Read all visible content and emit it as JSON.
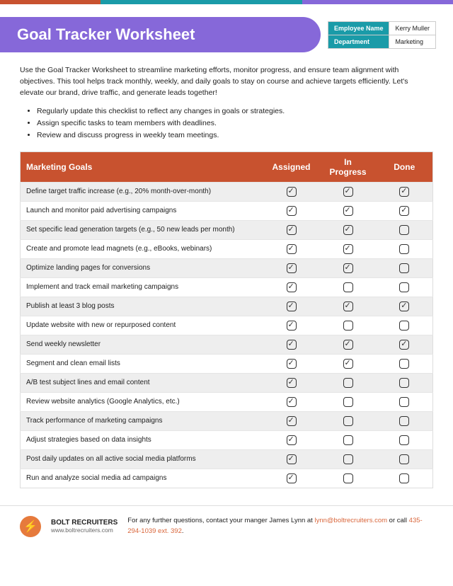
{
  "colors": {
    "purple": "#8668d9",
    "teal": "#1a9ba8",
    "rust": "#c8522f",
    "orange": "#e67a3c"
  },
  "title": "Goal Tracker Worksheet",
  "info": {
    "empLabel": "Employee Name",
    "empValue": "Kerry Muller",
    "deptLabel": "Department",
    "deptValue": "Marketing"
  },
  "intro": "Use the Goal Tracker Worksheet to streamline marketing efforts, monitor progress, and ensure team alignment with objectives. This tool helps track monthly, weekly, and daily goals to stay on course and achieve targets efficiently. Let's elevate our brand, drive traffic, and generate leads together!",
  "bullets": [
    "Regularly update this checklist to reflect any changes in goals or strategies.",
    "Assign specific tasks to team members with deadlines.",
    "Review and discuss progress in weekly team meetings."
  ],
  "table": {
    "headers": [
      "Marketing Goals",
      "Assigned",
      "In Progress",
      "Done"
    ],
    "rows": [
      {
        "goal": "Define target traffic increase (e.g., 20% month-over-month)",
        "c": [
          true,
          true,
          true
        ]
      },
      {
        "goal": "Launch and monitor paid advertising campaigns",
        "c": [
          true,
          true,
          true
        ]
      },
      {
        "goal": "Set specific lead generation targets (e.g., 50 new leads per month)",
        "c": [
          true,
          true,
          false
        ]
      },
      {
        "goal": "Create and promote lead magnets (e.g., eBooks, webinars)",
        "c": [
          true,
          true,
          false
        ]
      },
      {
        "goal": "Optimize landing pages for conversions",
        "c": [
          true,
          true,
          false
        ]
      },
      {
        "goal": "Implement and track email marketing campaigns",
        "c": [
          true,
          false,
          false
        ]
      },
      {
        "goal": "Publish at least 3 blog posts",
        "c": [
          true,
          true,
          true
        ]
      },
      {
        "goal": "Update website with new or repurposed content",
        "c": [
          true,
          false,
          false
        ]
      },
      {
        "goal": "Send weekly newsletter",
        "c": [
          true,
          true,
          true
        ]
      },
      {
        "goal": "Segment and clean email lists",
        "c": [
          true,
          true,
          false
        ]
      },
      {
        "goal": "A/B test subject lines and email content",
        "c": [
          true,
          false,
          false
        ]
      },
      {
        "goal": "Review website analytics (Google Analytics, etc.)",
        "c": [
          true,
          false,
          false
        ]
      },
      {
        "goal": "Track performance of marketing campaigns",
        "c": [
          true,
          false,
          false
        ]
      },
      {
        "goal": "Adjust strategies based on data insights",
        "c": [
          true,
          false,
          false
        ]
      },
      {
        "goal": "Post daily updates on all active social media platforms",
        "c": [
          true,
          false,
          false
        ]
      },
      {
        "goal": "Run and analyze social media ad campaigns",
        "c": [
          true,
          false,
          false
        ]
      }
    ]
  },
  "footer": {
    "company": "BOLT RECRUITERS",
    "site": "www.boltrecruiters.com",
    "text1": "For any further questions, contact your manger James Lynn at ",
    "email": "lynn@boltrecruiters.com",
    "text2": " or call ",
    "phone": "435-294-1039 ext. 392",
    "text3": "."
  }
}
